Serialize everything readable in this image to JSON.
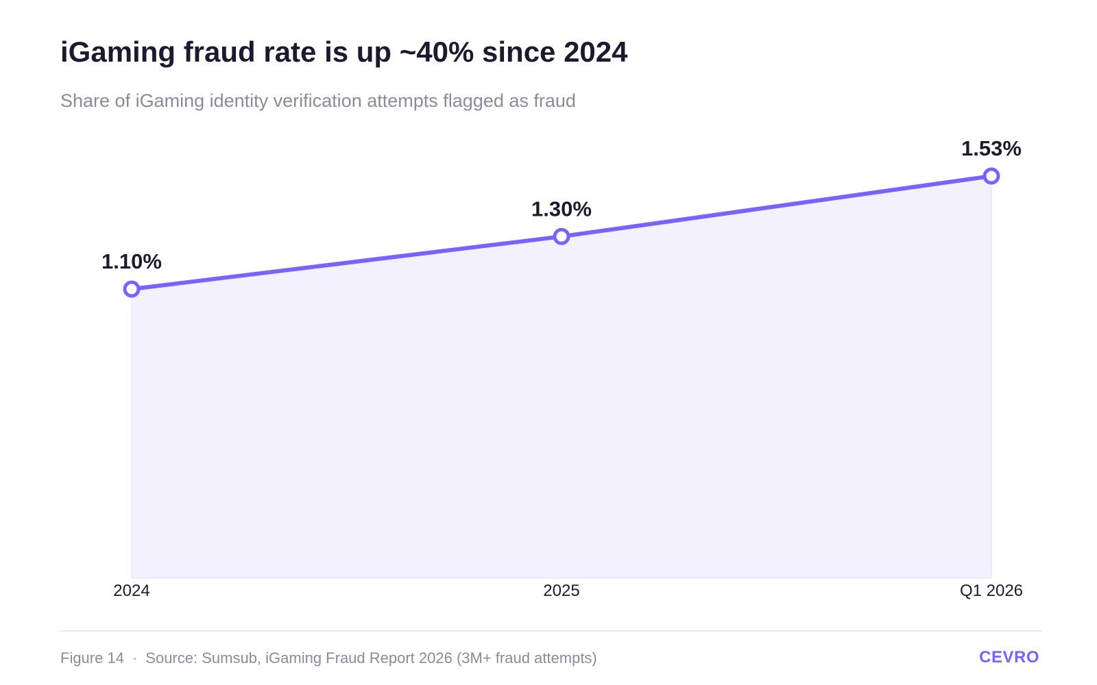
{
  "header": {
    "title": "iGaming fraud rate is up ~40% since 2024",
    "subtitle": "Share of iGaming identity verification attempts flagged as fraud"
  },
  "footer": {
    "figure_label": "Figure 14",
    "separator": "·",
    "source": "Source: Sumsub, iGaming Fraud Report 2026 (3M+ fraud attempts)",
    "brand": "CEVRO"
  },
  "colors": {
    "line": "#7b61ff",
    "area_fill": "#f3f1fe",
    "text_dark": "#1b1b2f",
    "text_muted": "#8a8a9c",
    "brand": "#7b61ff"
  },
  "chart_data": {
    "type": "area",
    "categories": [
      "2024",
      "2025",
      "Q1 2026"
    ],
    "values": [
      1.1,
      1.3,
      1.53
    ],
    "data_labels": [
      "1.10%",
      "1.30%",
      "1.53%"
    ],
    "ylim": [
      0,
      2.2
    ],
    "grid": false,
    "legend": "none"
  }
}
